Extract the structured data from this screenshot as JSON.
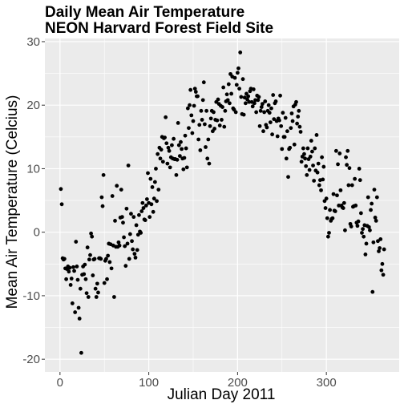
{
  "chart_data": {
    "type": "scatter",
    "title": "Daily Mean Air Temperature",
    "subtitle": "NEON Harvard Forest Field Site",
    "xlabel": "Julian Day 2011",
    "ylabel": "Mean Air Temperature (Celcius)",
    "xlim": [
      -17,
      382
    ],
    "ylim": [
      -22,
      30.5
    ],
    "x_ticks": [
      0,
      100,
      200,
      300
    ],
    "y_ticks": [
      -20,
      -10,
      0,
      10,
      20,
      30
    ],
    "x_tick_labels": [
      "0",
      "100",
      "200",
      "300"
    ],
    "y_tick_labels": [
      "-20",
      "-10",
      "0",
      "10",
      "20",
      "30"
    ],
    "grid": true,
    "legend": "none",
    "point_color": "#000000",
    "panel_background": "#ebebeb",
    "grid_color": "#ffffff",
    "points": [
      [
        1,
        6.8
      ],
      [
        2,
        4.4
      ],
      [
        3,
        -4.1
      ],
      [
        4,
        -4.3
      ],
      [
        5,
        -4.2
      ],
      [
        6,
        -5.7
      ],
      [
        7,
        -7.4
      ],
      [
        8,
        -5.8
      ],
      [
        9,
        -5.4
      ],
      [
        10,
        -6.2
      ],
      [
        11,
        -5.6
      ],
      [
        12,
        -8.3
      ],
      [
        13,
        -7.3
      ],
      [
        14,
        -11.2
      ],
      [
        15,
        -5.5
      ],
      [
        16,
        -6.1
      ],
      [
        17,
        -12.6
      ],
      [
        18,
        -1.5
      ],
      [
        19,
        -5.4
      ],
      [
        20,
        -7.5
      ],
      [
        21,
        -11.9
      ],
      [
        22,
        -13.6
      ],
      [
        23,
        -8.9
      ],
      [
        24,
        -19
      ],
      [
        25,
        -6.7
      ],
      [
        26,
        -5.4
      ],
      [
        27,
        -6.6
      ],
      [
        28,
        -5.1
      ],
      [
        29,
        -7.4
      ],
      [
        30,
        -9.6
      ],
      [
        31,
        -2.4
      ],
      [
        32,
        -10.2
      ],
      [
        33,
        -4.3
      ],
      [
        34,
        -3.6
      ],
      [
        35,
        -0.2
      ],
      [
        36,
        -0.7
      ],
      [
        37,
        -6.8
      ],
      [
        38,
        -4.3
      ],
      [
        39,
        -4.2
      ],
      [
        40,
        -8.9
      ],
      [
        41,
        -10.2
      ],
      [
        42,
        -8.1
      ],
      [
        43,
        -9.5
      ],
      [
        44,
        -4.1
      ],
      [
        45,
        -4.1
      ],
      [
        46,
        -4.2
      ],
      [
        47,
        5.5
      ],
      [
        48,
        4.1
      ],
      [
        49,
        9
      ],
      [
        50,
        -8
      ],
      [
        51,
        -4.5
      ],
      [
        52,
        -4.2
      ],
      [
        53,
        -7.4
      ],
      [
        54,
        -3.7
      ],
      [
        55,
        -1.8
      ],
      [
        56,
        -4.7
      ],
      [
        57,
        -1.9
      ],
      [
        58,
        -5.7
      ],
      [
        59,
        5.7
      ],
      [
        60,
        -2.1
      ],
      [
        61,
        -10.2
      ],
      [
        62,
        1.8
      ],
      [
        63,
        -2.3
      ],
      [
        64,
        7.3
      ],
      [
        65,
        -2.3
      ],
      [
        66,
        -1.6
      ],
      [
        67,
        -2.1
      ],
      [
        68,
        2.3
      ],
      [
        69,
        6.7
      ],
      [
        70,
        2.4
      ],
      [
        71,
        1.5
      ],
      [
        72,
        -0.8
      ],
      [
        73,
        -2.2
      ],
      [
        74,
        -5.3
      ],
      [
        75,
        3.7
      ],
      [
        76,
        -1.8
      ],
      [
        77,
        10.5
      ],
      [
        78,
        -4.2
      ],
      [
        79,
        -0.3
      ],
      [
        80,
        2.9
      ],
      [
        81,
        -1.4
      ],
      [
        82,
        -2.7
      ],
      [
        83,
        2.4
      ],
      [
        84,
        -3.4
      ],
      [
        85,
        -4
      ],
      [
        86,
        1.1
      ],
      [
        87,
        -2.8
      ],
      [
        88,
        -0.4
      ],
      [
        89,
        2.7
      ],
      [
        90,
        0.1
      ],
      [
        91,
        -0.1
      ],
      [
        92,
        3.3
      ],
      [
        93,
        4.6
      ],
      [
        94,
        3.8
      ],
      [
        95,
        2
      ],
      [
        96,
        1.9
      ],
      [
        97,
        4.2
      ],
      [
        98,
        5.2
      ],
      [
        99,
        9.3
      ],
      [
        100,
        4.6
      ],
      [
        101,
        2.4
      ],
      [
        102,
        8.4
      ],
      [
        103,
        4.4
      ],
      [
        104,
        7.1
      ],
      [
        105,
        3.2
      ],
      [
        106,
        5.3
      ],
      [
        107,
        7.9
      ],
      [
        108,
        10
      ],
      [
        109,
        4.9
      ],
      [
        110,
        12.3
      ],
      [
        111,
        6.7
      ],
      [
        112,
        13.3
      ],
      [
        113,
        11.6
      ],
      [
        114,
        13
      ],
      [
        115,
        15
      ],
      [
        116,
        11.1
      ],
      [
        117,
        14.8
      ],
      [
        118,
        14.9
      ],
      [
        119,
        18.1
      ],
      [
        120,
        14
      ],
      [
        121,
        10.8
      ],
      [
        122,
        13.3
      ],
      [
        123,
        12.8
      ],
      [
        124,
        10.2
      ],
      [
        125,
        11.8
      ],
      [
        126,
        13.7
      ],
      [
        127,
        11.6
      ],
      [
        128,
        14.7
      ],
      [
        129,
        11.5
      ],
      [
        130,
        11.5
      ],
      [
        131,
        9
      ],
      [
        132,
        11.4
      ],
      [
        133,
        17.2
      ],
      [
        134,
        13.7
      ],
      [
        135,
        12
      ],
      [
        136,
        14.2
      ],
      [
        137,
        13.1
      ],
      [
        138,
        11.6
      ],
      [
        139,
        9.9
      ],
      [
        140,
        11.7
      ],
      [
        141,
        15.2
      ],
      [
        142,
        13.2
      ],
      [
        143,
        10.2
      ],
      [
        144,
        19.5
      ],
      [
        145,
        16.4
      ],
      [
        146,
        20
      ],
      [
        147,
        22.4
      ],
      [
        148,
        18.4
      ],
      [
        149,
        15.6
      ],
      [
        150,
        17.5
      ],
      [
        151,
        19.9
      ],
      [
        152,
        22.6
      ],
      [
        153,
        22.1
      ],
      [
        154,
        21.4
      ],
      [
        155,
        21.4
      ],
      [
        156,
        14.6
      ],
      [
        157,
        16.9
      ],
      [
        158,
        12.9
      ],
      [
        159,
        19.1
      ],
      [
        160,
        17.7
      ],
      [
        161,
        20.8
      ],
      [
        162,
        23.6
      ],
      [
        163,
        17
      ],
      [
        164,
        13.4
      ],
      [
        165,
        19.1
      ],
      [
        166,
        11.6
      ],
      [
        167,
        14.6
      ],
      [
        168,
        10.8
      ],
      [
        169,
        16.7
      ],
      [
        170,
        17.9
      ],
      [
        171,
        19.1
      ],
      [
        172,
        15.9
      ],
      [
        173,
        18.9
      ],
      [
        174,
        16.3
      ],
      [
        175,
        17.7
      ],
      [
        176,
        20.5
      ],
      [
        177,
        17.6
      ],
      [
        178,
        20.9
      ],
      [
        179,
        20.2
      ],
      [
        180,
        16.8
      ],
      [
        181,
        19.9
      ],
      [
        182,
        17.7
      ],
      [
        183,
        19.7
      ],
      [
        184,
        22.8
      ],
      [
        185,
        16.6
      ],
      [
        186,
        19.1
      ],
      [
        187,
        20.6
      ],
      [
        188,
        21.7
      ],
      [
        189,
        20.8
      ],
      [
        190,
        23.3
      ],
      [
        191,
        20.3
      ],
      [
        192,
        24.9
      ],
      [
        193,
        21.8
      ],
      [
        194,
        24.5
      ],
      [
        195,
        19.5
      ],
      [
        196,
        19.3
      ],
      [
        197,
        24.3
      ],
      [
        198,
        18.9
      ],
      [
        199,
        23.2
      ],
      [
        200,
        25.1
      ],
      [
        201,
        25.8
      ],
      [
        202,
        22.6
      ],
      [
        203,
        28.3
      ],
      [
        204,
        21.3
      ],
      [
        205,
        18.6
      ],
      [
        206,
        24.1
      ],
      [
        207,
        18.5
      ],
      [
        208,
        21.2
      ],
      [
        209,
        20.3
      ],
      [
        210,
        21.8
      ],
      [
        211,
        20.9
      ],
      [
        212,
        21.4
      ],
      [
        213,
        20.5
      ],
      [
        214,
        22.2
      ],
      [
        215,
        22.6
      ],
      [
        216,
        20.5
      ],
      [
        217,
        19.8
      ],
      [
        218,
        22.5
      ],
      [
        219,
        20.3
      ],
      [
        220,
        20.8
      ],
      [
        221,
        18.9
      ],
      [
        222,
        21.5
      ],
      [
        223,
        20.8
      ],
      [
        224,
        21.3
      ],
      [
        225,
        16.7
      ],
      [
        226,
        19.1
      ],
      [
        227,
        19.7
      ],
      [
        228,
        20.2
      ],
      [
        229,
        15.9
      ],
      [
        230,
        18.9
      ],
      [
        231,
        20.6
      ],
      [
        232,
        16.9
      ],
      [
        233,
        16.5
      ],
      [
        234,
        19.1
      ],
      [
        235,
        20
      ],
      [
        236,
        18.8
      ],
      [
        237,
        17.3
      ],
      [
        238,
        19.5
      ],
      [
        239,
        15.4
      ],
      [
        240,
        21.6
      ],
      [
        241,
        17.8
      ],
      [
        242,
        20.3
      ],
      [
        243,
        20.6
      ],
      [
        244,
        17.5
      ],
      [
        245,
        15.1
      ],
      [
        246,
        17.9
      ],
      [
        247,
        17.6
      ],
      [
        248,
        21.5
      ],
      [
        249,
        16.7
      ],
      [
        250,
        13.1
      ],
      [
        251,
        18.8
      ],
      [
        252,
        15
      ],
      [
        253,
        15
      ],
      [
        254,
        18
      ],
      [
        255,
        11.6
      ],
      [
        256,
        15.9
      ],
      [
        257,
        8.7
      ],
      [
        258,
        13.1
      ],
      [
        259,
        13.3
      ],
      [
        260,
        16.4
      ],
      [
        261,
        18.7
      ],
      [
        262,
        17.5
      ],
      [
        263,
        19.8
      ],
      [
        264,
        13.8
      ],
      [
        265,
        20.1
      ],
      [
        266,
        20.5
      ],
      [
        267,
        17.1
      ],
      [
        268,
        18.2
      ],
      [
        269,
        19.1
      ],
      [
        270,
        16.6
      ],
      [
        271,
        15.8
      ],
      [
        272,
        11.1
      ],
      [
        273,
        11.9
      ],
      [
        274,
        13.2
      ],
      [
        275,
        12.3
      ],
      [
        276,
        11.6
      ],
      [
        277,
        10.4
      ],
      [
        278,
        9
      ],
      [
        279,
        13.2
      ],
      [
        280,
        11.5
      ],
      [
        281,
        9.8
      ],
      [
        282,
        11.9
      ],
      [
        283,
        14.4
      ],
      [
        284,
        12.7
      ],
      [
        285,
        10.5
      ],
      [
        286,
        8.1
      ],
      [
        287,
        13.2
      ],
      [
        288,
        9.7
      ],
      [
        289,
        15.3
      ],
      [
        290,
        9.4
      ],
      [
        291,
        10.8
      ],
      [
        292,
        7.4
      ],
      [
        293,
        8.2
      ],
      [
        294,
        6.6
      ],
      [
        295,
        11.8
      ],
      [
        296,
        8.3
      ],
      [
        297,
        10.3
      ],
      [
        298,
        4.9
      ],
      [
        299,
        3.8
      ],
      [
        300,
        5.3
      ],
      [
        301,
        2.2
      ],
      [
        302,
        -0.7
      ],
      [
        303,
        -0.1
      ],
      [
        304,
        3.5
      ],
      [
        305,
        1.8
      ],
      [
        306,
        2.1
      ],
      [
        307,
        2.2
      ],
      [
        308,
        6
      ],
      [
        309,
        3.4
      ],
      [
        310,
        3.3
      ],
      [
        311,
        12.8
      ],
      [
        312,
        5.8
      ],
      [
        313,
        10.7
      ],
      [
        314,
        4.2
      ],
      [
        315,
        12.4
      ],
      [
        316,
        6.6
      ],
      [
        317,
        4.2
      ],
      [
        318,
        3.9
      ],
      [
        319,
        3.8
      ],
      [
        320,
        4.6
      ],
      [
        321,
        0.3
      ],
      [
        322,
        11.8
      ],
      [
        323,
        10.6
      ],
      [
        324,
        12.8
      ],
      [
        325,
        7.4
      ],
      [
        326,
        10.1
      ],
      [
        327,
        1.3
      ],
      [
        328,
        0.9
      ],
      [
        329,
        7.4
      ],
      [
        330,
        4
      ],
      [
        331,
        4.1
      ],
      [
        332,
        8.4
      ],
      [
        333,
        4.2
      ],
      [
        334,
        1.5
      ],
      [
        335,
        1
      ],
      [
        336,
        1.7
      ],
      [
        337,
        10
      ],
      [
        338,
        8.2
      ],
      [
        339,
        3
      ],
      [
        340,
        -0.1
      ],
      [
        341,
        0.5
      ],
      [
        342,
        -0.7
      ],
      [
        343,
        1.1
      ],
      [
        344,
        -3.5
      ],
      [
        345,
        -1.8
      ],
      [
        346,
        1
      ],
      [
        347,
        5.5
      ],
      [
        348,
        0.8
      ],
      [
        349,
        0.3
      ],
      [
        350,
        3.5
      ],
      [
        351,
        4.5
      ],
      [
        352,
        -9.4
      ],
      [
        353,
        -1.6
      ],
      [
        354,
        6.7
      ],
      [
        355,
        2.3
      ],
      [
        356,
        1.8
      ],
      [
        357,
        5.5
      ],
      [
        358,
        -1.4
      ],
      [
        359,
        -3
      ],
      [
        360,
        -2.5
      ],
      [
        361,
        -1.1
      ],
      [
        362,
        -6
      ],
      [
        363,
        -5
      ],
      [
        364,
        -6.7
      ],
      [
        365,
        -2.7
      ]
    ]
  }
}
